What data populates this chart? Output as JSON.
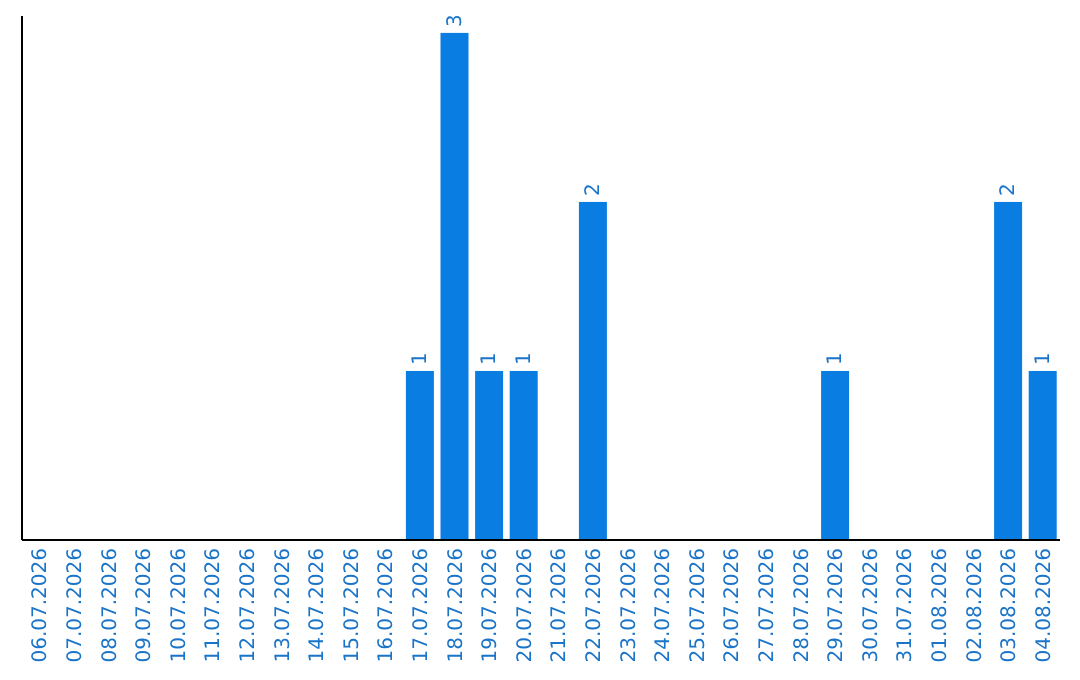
{
  "chart_data": {
    "type": "bar",
    "categories": [
      "06.07.2026",
      "07.07.2026",
      "08.07.2026",
      "09.07.2026",
      "10.07.2026",
      "11.07.2026",
      "12.07.2026",
      "13.07.2026",
      "14.07.2026",
      "15.07.2026",
      "16.07.2026",
      "17.07.2026",
      "18.07.2026",
      "19.07.2026",
      "20.07.2026",
      "21.07.2026",
      "22.07.2026",
      "23.07.2026",
      "24.07.2026",
      "25.07.2026",
      "26.07.2026",
      "27.07.2026",
      "28.07.2026",
      "29.07.2026",
      "30.07.2026",
      "31.07.2026",
      "01.08.2026",
      "02.08.2026",
      "03.08.2026",
      "04.08.2026"
    ],
    "values": [
      0,
      0,
      0,
      0,
      0,
      0,
      0,
      0,
      0,
      0,
      0,
      1,
      3,
      1,
      1,
      0,
      2,
      0,
      0,
      0,
      0,
      0,
      0,
      1,
      0,
      0,
      0,
      0,
      2,
      1
    ],
    "value_labels": [
      null,
      null,
      null,
      null,
      null,
      null,
      null,
      null,
      null,
      null,
      null,
      "1",
      "3",
      "1",
      "1",
      null,
      "2",
      null,
      null,
      null,
      null,
      null,
      null,
      "1",
      null,
      null,
      null,
      null,
      "2",
      "1"
    ],
    "color": "#0a7de3",
    "ylim": [
      0,
      3.1
    ],
    "tick_labels": "x"
  }
}
